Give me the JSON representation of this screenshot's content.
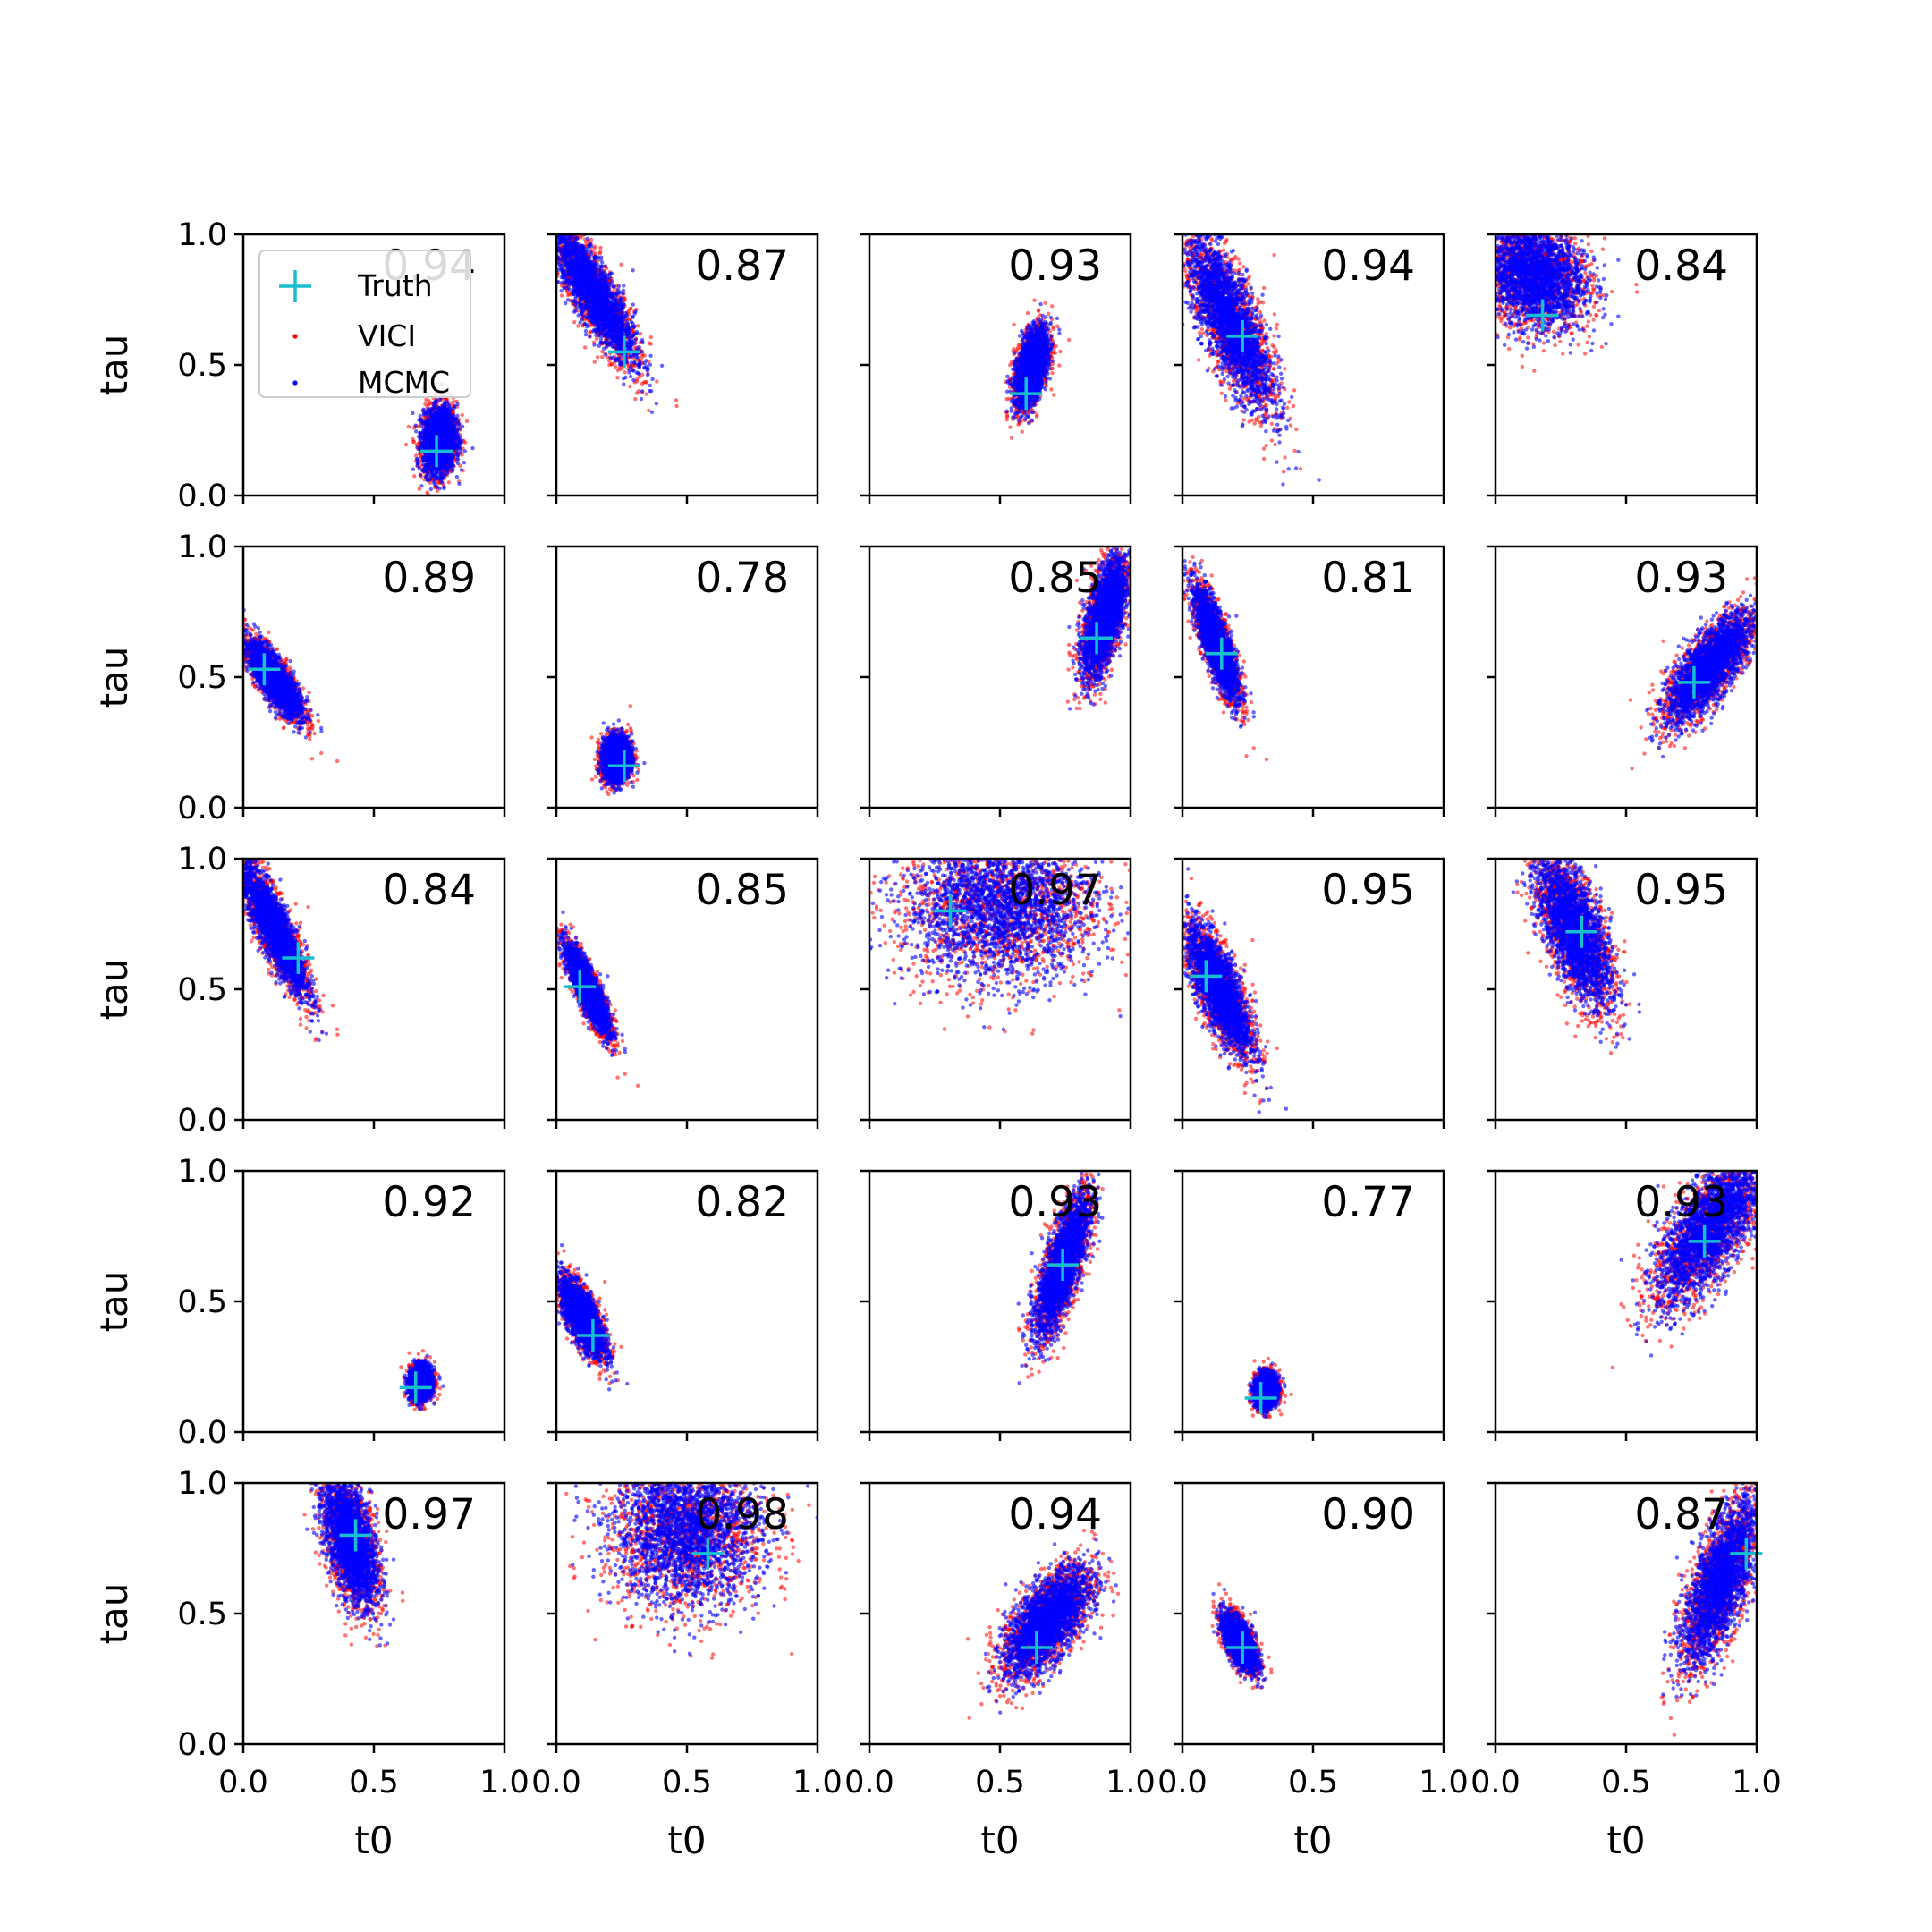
{
  "chart_data": {
    "type": "scatter",
    "xlabel": "t0",
    "ylabel": "tau",
    "xlim": [
      0,
      1
    ],
    "ylim": [
      0,
      1
    ],
    "xticks": [
      "0.0",
      "0.5",
      "1.0"
    ],
    "yticks": [
      "0.0",
      "0.5",
      "1.0"
    ],
    "grid": false,
    "legend": {
      "location": "upper-left",
      "entries": [
        "Truth",
        "VICI",
        "MCMC"
      ]
    },
    "colors": {
      "truth": "#17becf",
      "vici": "#ff0000",
      "mcmc": "#0000ff"
    },
    "rows": 5,
    "cols": 5,
    "panels": [
      {
        "truth": [
          0.74,
          0.17
        ],
        "overlap": "0.94",
        "post": {
          "cx": 0.75,
          "cy": 0.21,
          "sx": 0.03,
          "sy": 0.06,
          "rho": 0.1
        }
      },
      {
        "truth": [
          0.26,
          0.55
        ],
        "overlap": "0.87",
        "post": {
          "cx": 0.14,
          "cy": 0.78,
          "sx": 0.08,
          "sy": 0.13,
          "rho": -0.85
        }
      },
      {
        "truth": [
          0.6,
          0.39
        ],
        "overlap": "0.93",
        "post": {
          "cx": 0.62,
          "cy": 0.49,
          "sx": 0.03,
          "sy": 0.07,
          "rho": 0.5
        }
      },
      {
        "truth": [
          0.23,
          0.61
        ],
        "overlap": "0.94",
        "post": {
          "cx": 0.18,
          "cy": 0.67,
          "sx": 0.08,
          "sy": 0.16,
          "rho": -0.75
        }
      },
      {
        "truth": [
          0.18,
          0.69
        ],
        "overlap": "0.84",
        "post": {
          "cx": 0.14,
          "cy": 0.85,
          "sx": 0.1,
          "sy": 0.1,
          "rho": -0.2
        }
      },
      {
        "truth": [
          0.08,
          0.53
        ],
        "overlap": "0.89",
        "post": {
          "cx": 0.12,
          "cy": 0.49,
          "sx": 0.05,
          "sy": 0.07,
          "rho": -0.8
        }
      },
      {
        "truth": [
          0.26,
          0.16
        ],
        "overlap": "0.78",
        "post": {
          "cx": 0.23,
          "cy": 0.19,
          "sx": 0.025,
          "sy": 0.04,
          "rho": 0.1
        }
      },
      {
        "truth": [
          0.87,
          0.65
        ],
        "overlap": "0.85",
        "post": {
          "cx": 0.9,
          "cy": 0.73,
          "sx": 0.04,
          "sy": 0.11,
          "rho": 0.6
        }
      },
      {
        "truth": [
          0.15,
          0.59
        ],
        "overlap": "0.81",
        "post": {
          "cx": 0.13,
          "cy": 0.63,
          "sx": 0.04,
          "sy": 0.1,
          "rho": -0.8
        }
      },
      {
        "truth": [
          0.76,
          0.48
        ],
        "overlap": "0.93",
        "post": {
          "cx": 0.82,
          "cy": 0.54,
          "sx": 0.08,
          "sy": 0.1,
          "rho": 0.75
        }
      },
      {
        "truth": [
          0.21,
          0.62
        ],
        "overlap": "0.84",
        "post": {
          "cx": 0.12,
          "cy": 0.73,
          "sx": 0.06,
          "sy": 0.12,
          "rho": -0.85
        }
      },
      {
        "truth": [
          0.09,
          0.51
        ],
        "overlap": "0.85",
        "post": {
          "cx": 0.12,
          "cy": 0.5,
          "sx": 0.04,
          "sy": 0.08,
          "rho": -0.85
        }
      },
      {
        "truth": [
          0.31,
          0.8
        ],
        "overlap": "0.97",
        "post": {
          "cx": 0.5,
          "cy": 0.82,
          "sx": 0.18,
          "sy": 0.14,
          "rho": 0.0
        }
      },
      {
        "truth": [
          0.09,
          0.55
        ],
        "overlap": "0.95",
        "post": {
          "cx": 0.14,
          "cy": 0.5,
          "sx": 0.06,
          "sy": 0.12,
          "rho": -0.75
        }
      },
      {
        "truth": [
          0.33,
          0.72
        ],
        "overlap": "0.95",
        "post": {
          "cx": 0.3,
          "cy": 0.73,
          "sx": 0.07,
          "sy": 0.14,
          "rho": -0.65
        }
      },
      {
        "truth": [
          0.66,
          0.17
        ],
        "overlap": "0.92",
        "post": {
          "cx": 0.68,
          "cy": 0.19,
          "sx": 0.02,
          "sy": 0.03,
          "rho": 0.1
        }
      },
      {
        "truth": [
          0.14,
          0.37
        ],
        "overlap": "0.82",
        "post": {
          "cx": 0.1,
          "cy": 0.44,
          "sx": 0.04,
          "sy": 0.07,
          "rho": -0.7
        }
      },
      {
        "truth": [
          0.74,
          0.64
        ],
        "overlap": "0.93",
        "post": {
          "cx": 0.74,
          "cy": 0.64,
          "sx": 0.05,
          "sy": 0.13,
          "rho": 0.75
        }
      },
      {
        "truth": [
          0.3,
          0.13
        ],
        "overlap": "0.77",
        "post": {
          "cx": 0.32,
          "cy": 0.16,
          "sx": 0.02,
          "sy": 0.03,
          "rho": 0.1
        }
      },
      {
        "truth": [
          0.8,
          0.73
        ],
        "overlap": "0.93",
        "post": {
          "cx": 0.82,
          "cy": 0.78,
          "sx": 0.1,
          "sy": 0.14,
          "rho": 0.7
        }
      },
      {
        "truth": [
          0.43,
          0.8
        ],
        "overlap": "0.97",
        "post": {
          "cx": 0.41,
          "cy": 0.78,
          "sx": 0.05,
          "sy": 0.12,
          "rho": -0.5
        }
      },
      {
        "truth": [
          0.58,
          0.73
        ],
        "overlap": "0.98",
        "post": {
          "cx": 0.5,
          "cy": 0.82,
          "sx": 0.14,
          "sy": 0.14,
          "rho": 0.0
        }
      },
      {
        "truth": [
          0.64,
          0.37
        ],
        "overlap": "0.94",
        "post": {
          "cx": 0.68,
          "cy": 0.47,
          "sx": 0.08,
          "sy": 0.1,
          "rho": 0.65
        }
      },
      {
        "truth": [
          0.23,
          0.37
        ],
        "overlap": "0.90",
        "post": {
          "cx": 0.22,
          "cy": 0.39,
          "sx": 0.03,
          "sy": 0.05,
          "rho": -0.6
        }
      },
      {
        "truth": [
          0.96,
          0.73
        ],
        "overlap": "0.87",
        "post": {
          "cx": 0.86,
          "cy": 0.62,
          "sx": 0.07,
          "sy": 0.15,
          "rho": 0.7
        }
      }
    ]
  }
}
